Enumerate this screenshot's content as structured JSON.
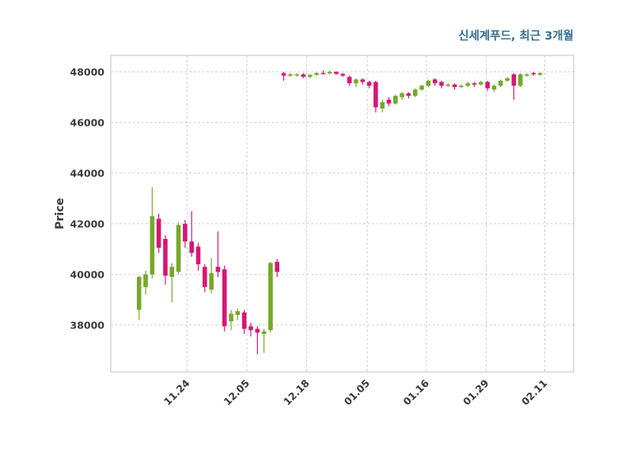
{
  "title": "신세계푸드, 최근 3개월",
  "colors": {
    "title": "#31708f",
    "axis_text": "#3a3a3a",
    "grid": "#c9c9c9",
    "frame": "#c0c0c0",
    "background": "#ffffff",
    "up": "#76a829",
    "down": "#d41876"
  },
  "chart_data": {
    "type": "candlestick",
    "title": "신세계푸드, 최근 3개월",
    "xlabel": "",
    "ylabel": "Price",
    "legend": "none",
    "grid": "dashed both axes",
    "ylim": [
      36150,
      48650
    ],
    "xlim_index": [
      -4.3,
      66.1
    ],
    "yticks": [
      38000,
      40000,
      42000,
      44000,
      46000,
      48000
    ],
    "xticks": [
      {
        "label": "11.24",
        "index": 7.3
      },
      {
        "label": "12.05",
        "index": 16.4
      },
      {
        "label": "12.18",
        "index": 25.5
      },
      {
        "label": "01.05",
        "index": 34.7
      },
      {
        "label": "01.16",
        "index": 43.7
      },
      {
        "label": "01.29",
        "index": 52.8
      },
      {
        "label": "02.11",
        "index": 61.7
      }
    ],
    "ohlc_format": [
      "open",
      "high",
      "low",
      "close"
    ],
    "candles": [
      [
        38600,
        39950,
        38200,
        39900
      ],
      [
        39500,
        40150,
        39200,
        40000
      ],
      [
        40000,
        43450,
        39850,
        42300
      ],
      [
        42200,
        42400,
        40850,
        41050
      ],
      [
        41400,
        41550,
        39600,
        39950
      ],
      [
        39900,
        40450,
        38900,
        40300
      ],
      [
        40100,
        42050,
        40000,
        41950
      ],
      [
        42000,
        42150,
        41050,
        41300
      ],
      [
        41300,
        42500,
        40700,
        40850
      ],
      [
        41100,
        41250,
        40150,
        40400
      ],
      [
        40300,
        40400,
        39300,
        39500
      ],
      [
        39400,
        40650,
        39250,
        40050
      ],
      [
        40300,
        41700,
        39900,
        40100
      ],
      [
        40200,
        40350,
        37750,
        37950
      ],
      [
        38150,
        38600,
        37800,
        38450
      ],
      [
        38400,
        38650,
        38200,
        38550
      ],
      [
        38500,
        38600,
        37650,
        37850
      ],
      [
        37950,
        38100,
        37550,
        37800
      ],
      [
        37850,
        37950,
        36850,
        37700
      ],
      [
        37650,
        37850,
        36900,
        37750
      ],
      [
        37800,
        40500,
        37700,
        40450
      ],
      [
        40500,
        40600,
        39900,
        40100
      ],
      [
        47950,
        48000,
        47650,
        47850
      ],
      [
        47850,
        47950,
        47800,
        47900
      ],
      [
        47880,
        47950,
        47800,
        47900
      ],
      [
        47900,
        47950,
        47750,
        47800
      ],
      [
        47800,
        47900,
        47750,
        47880
      ],
      [
        47880,
        47980,
        47850,
        47950
      ],
      [
        47950,
        48050,
        47900,
        47940
      ],
      [
        47940,
        48050,
        47900,
        48000
      ],
      [
        48000,
        48020,
        47880,
        47920
      ],
      [
        47920,
        47950,
        47800,
        47850
      ],
      [
        47800,
        47850,
        47450,
        47550
      ],
      [
        47550,
        47750,
        47400,
        47700
      ],
      [
        47700,
        47750,
        47500,
        47600
      ],
      [
        47600,
        47650,
        47350,
        47450
      ],
      [
        47600,
        47650,
        46400,
        46600
      ],
      [
        46550,
        46900,
        46400,
        46800
      ],
      [
        46900,
        47000,
        46650,
        46750
      ],
      [
        46750,
        47100,
        46700,
        47050
      ],
      [
        47000,
        47200,
        46900,
        47150
      ],
      [
        47150,
        47200,
        46950,
        47050
      ],
      [
        47050,
        47350,
        47000,
        47300
      ],
      [
        47300,
        47500,
        47250,
        47450
      ],
      [
        47450,
        47700,
        47400,
        47650
      ],
      [
        47700,
        47750,
        47450,
        47550
      ],
      [
        47600,
        47650,
        47350,
        47450
      ],
      [
        47450,
        47550,
        47400,
        47500
      ],
      [
        47500,
        47550,
        47300,
        47400
      ],
      [
        47400,
        47500,
        47350,
        47450
      ],
      [
        47450,
        47600,
        47400,
        47550
      ],
      [
        47550,
        47600,
        47400,
        47500
      ],
      [
        47500,
        47650,
        47450,
        47600
      ],
      [
        47600,
        47650,
        47250,
        47350
      ],
      [
        47300,
        47500,
        47200,
        47450
      ],
      [
        47450,
        47700,
        47400,
        47650
      ],
      [
        47650,
        47800,
        47600,
        47750
      ],
      [
        47900,
        47950,
        46900,
        47450
      ],
      [
        47450,
        47950,
        47400,
        47900
      ],
      [
        47850,
        47950,
        47800,
        47900
      ],
      [
        47950,
        48000,
        47850,
        47900
      ],
      [
        47880,
        47980,
        47850,
        47950
      ]
    ]
  }
}
